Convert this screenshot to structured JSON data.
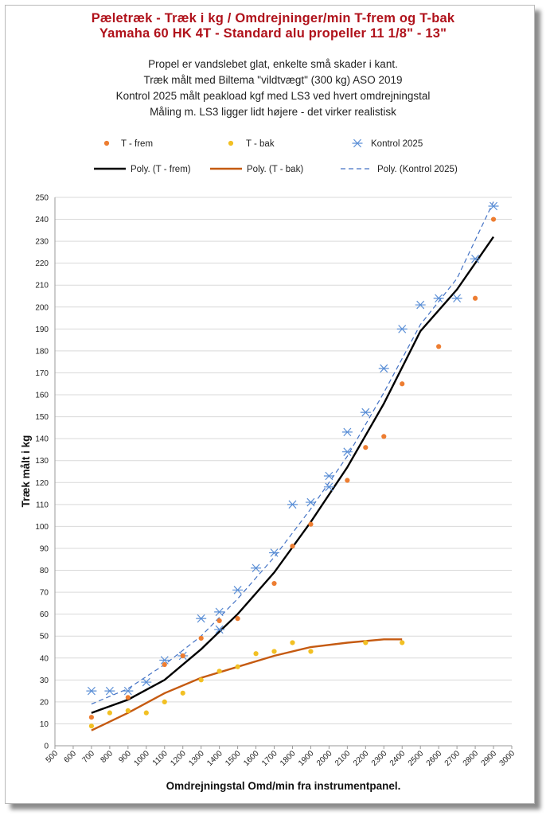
{
  "header": {
    "title_line1": "Pæletræk - Træk i kg / Omdrejninger/min        T-frem og T-bak",
    "title_line2": "Yamaha 60 HK 4T -  Standard alu propeller 11 1/8\" - 13\"",
    "notes": [
      "Propel er vandslebet glat, enkelte små skader i kant.",
      "Træk målt med Biltema \"vildtvægt\" (300 kg) ASO 2019",
      "Kontrol 2025 målt peakload kgf med LS3 ved hvert omdrejningstal",
      "Måling m. LS3 ligger lidt højere - det virker realistisk"
    ]
  },
  "colors": {
    "frem": "#ed7d31",
    "bak": "#f2c023",
    "kontrol": "#5b8fd6",
    "poly_frem": "#000000",
    "poly_bak": "#c55a11",
    "poly_kontrol": "#4472c4",
    "grid": "#d9d9d9",
    "title": "#b0121b"
  },
  "chart_data": {
    "type": "scatter",
    "xlabel": "Omdrejningstal  Omd/min fra instrumentpanel.",
    "ylabel": "Træk målt i kg",
    "xlim": [
      500,
      3000
    ],
    "ylim": [
      0,
      250
    ],
    "x_ticks": [
      500,
      600,
      700,
      800,
      900,
      1000,
      1100,
      1200,
      1300,
      1400,
      1500,
      1600,
      1700,
      1800,
      1900,
      2000,
      2100,
      2200,
      2300,
      2400,
      2500,
      2600,
      2700,
      2800,
      2900,
      3000
    ],
    "y_ticks": [
      0,
      10,
      20,
      30,
      40,
      50,
      60,
      70,
      80,
      90,
      100,
      110,
      120,
      130,
      140,
      150,
      160,
      170,
      180,
      190,
      200,
      210,
      220,
      230,
      240,
      250
    ],
    "grid": "horizontal",
    "legend_position": "top",
    "series": [
      {
        "name": "T - frem",
        "kind": "points",
        "x": [
          700,
          900,
          1100,
          1200,
          1300,
          1400,
          1500,
          1700,
          1800,
          1900,
          2100,
          2200,
          2300,
          2400,
          2600,
          2800,
          2900
        ],
        "y": [
          13,
          22,
          37,
          41,
          49,
          57,
          58,
          74,
          91,
          101,
          121,
          136,
          141,
          165,
          182,
          204,
          240
        ]
      },
      {
        "name": "T - bak",
        "kind": "points",
        "x": [
          700,
          800,
          900,
          1000,
          1100,
          1200,
          1300,
          1400,
          1500,
          1600,
          1700,
          1800,
          1900,
          2200,
          2400
        ],
        "y": [
          9,
          15,
          16,
          15,
          20,
          24,
          30,
          34,
          36,
          42,
          43,
          47,
          43,
          47,
          47
        ]
      },
      {
        "name": "Kontrol 2025",
        "kind": "points",
        "x": [
          700,
          800,
          900,
          1000,
          1100,
          1200,
          1300,
          1400,
          1400,
          1500,
          1600,
          1700,
          1800,
          1900,
          2000,
          2000,
          2100,
          2100,
          2200,
          2300,
          2400,
          2500,
          2600,
          2700,
          2800,
          2900
        ],
        "y": [
          25,
          25,
          25,
          29,
          39,
          41,
          58,
          53,
          61,
          71,
          81,
          88,
          110,
          111,
          118,
          123,
          134,
          143,
          152,
          172,
          190,
          201,
          204,
          204,
          222,
          246
        ]
      },
      {
        "name": "Poly. (T - frem)",
        "kind": "trend",
        "x": [
          700,
          900,
          1100,
          1300,
          1500,
          1700,
          1900,
          2100,
          2300,
          2500,
          2700,
          2900
        ],
        "y": [
          15,
          21,
          30,
          44,
          60,
          79,
          102,
          127,
          156,
          189,
          208,
          232
        ]
      },
      {
        "name": "Poly. (T - bak)",
        "kind": "trend",
        "x": [
          700,
          900,
          1100,
          1300,
          1500,
          1700,
          1900,
          2100,
          2300,
          2400
        ],
        "y": [
          7,
          15,
          24,
          31,
          36,
          41,
          45,
          47,
          48.5,
          48.5
        ]
      },
      {
        "name": "Poly. (Kontrol 2025)",
        "kind": "trend",
        "x": [
          700,
          900,
          1100,
          1300,
          1500,
          1700,
          1900,
          2100,
          2300,
          2500,
          2700,
          2900
        ],
        "y": [
          19,
          26,
          37,
          50,
          67,
          86,
          108,
          132,
          161,
          192,
          213,
          248
        ]
      }
    ]
  }
}
